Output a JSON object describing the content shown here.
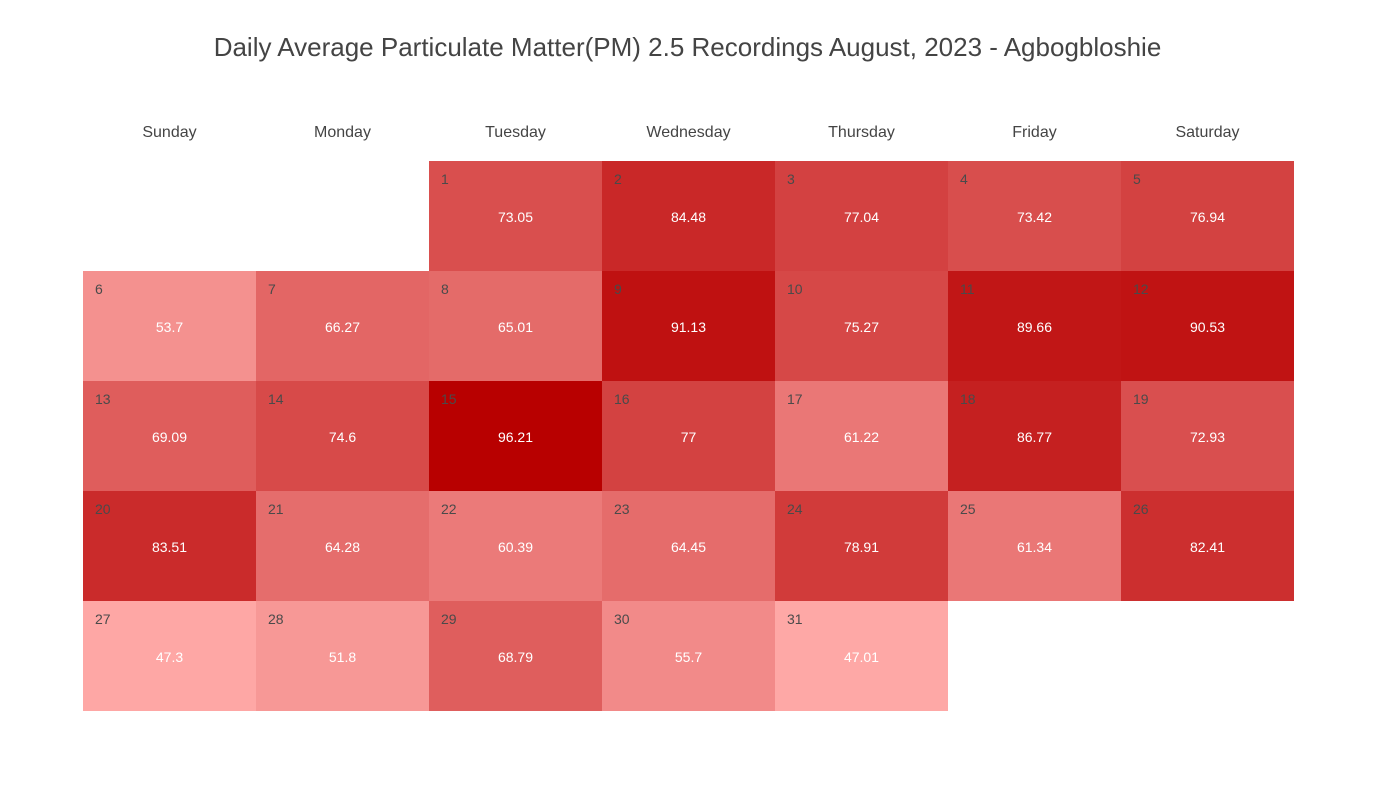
{
  "chart_data": {
    "type": "heatmap",
    "title": "Daily Average Particulate Matter(PM) 2.5 Recordings August, 2023 - Agbogbloshie",
    "weekdays": [
      "Sunday",
      "Monday",
      "Tuesday",
      "Wednesday",
      "Thursday",
      "Friday",
      "Saturday"
    ],
    "first_weekday_index": 2,
    "color_scale": {
      "min_value": 47.01,
      "max_value": 96.21,
      "low_color": "#fea8a6",
      "high_color": "#b80000"
    },
    "days": [
      {
        "day": 1,
        "value": 73.05
      },
      {
        "day": 2,
        "value": 84.48
      },
      {
        "day": 3,
        "value": 77.04
      },
      {
        "day": 4,
        "value": 73.42
      },
      {
        "day": 5,
        "value": 76.94
      },
      {
        "day": 6,
        "value": 53.7
      },
      {
        "day": 7,
        "value": 66.27
      },
      {
        "day": 8,
        "value": 65.01
      },
      {
        "day": 9,
        "value": 91.13
      },
      {
        "day": 10,
        "value": 75.27
      },
      {
        "day": 11,
        "value": 89.66
      },
      {
        "day": 12,
        "value": 90.53
      },
      {
        "day": 13,
        "value": 69.09
      },
      {
        "day": 14,
        "value": 74.6
      },
      {
        "day": 15,
        "value": 96.21
      },
      {
        "day": 16,
        "value": 77
      },
      {
        "day": 17,
        "value": 61.22
      },
      {
        "day": 18,
        "value": 86.77
      },
      {
        "day": 19,
        "value": 72.93
      },
      {
        "day": 20,
        "value": 83.51
      },
      {
        "day": 21,
        "value": 64.28
      },
      {
        "day": 22,
        "value": 60.39
      },
      {
        "day": 23,
        "value": 64.45
      },
      {
        "day": 24,
        "value": 78.91
      },
      {
        "day": 25,
        "value": 61.34
      },
      {
        "day": 26,
        "value": 82.41
      },
      {
        "day": 27,
        "value": 47.3
      },
      {
        "day": 28,
        "value": 51.8
      },
      {
        "day": 29,
        "value": 68.79
      },
      {
        "day": 30,
        "value": 55.7
      },
      {
        "day": 31,
        "value": 47.01
      }
    ]
  }
}
